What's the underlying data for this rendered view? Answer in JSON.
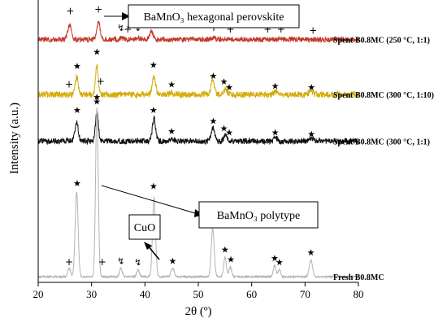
{
  "chart_data": {
    "type": "line",
    "xlabel": "2θ (º)",
    "ylabel": "Intensity (a.u.)",
    "xlim": [
      20,
      80
    ],
    "x_ticks": [
      20,
      30,
      40,
      50,
      60,
      70,
      80
    ],
    "series": [
      {
        "name": "Spent B0.8MC (250 °C, 1:1)",
        "color": "#c0392b",
        "baseline": 0.86,
        "noise": 0.018,
        "peaks": [
          {
            "x": 25.9,
            "h": 0.052,
            "w": 0.35
          },
          {
            "x": 31.3,
            "h": 0.062,
            "w": 0.3
          },
          {
            "x": 35.5,
            "h": 0.006,
            "w": 0.3
          },
          {
            "x": 38.6,
            "h": 0.005,
            "w": 0.3
          },
          {
            "x": 41.2,
            "h": 0.028,
            "w": 0.35
          },
          {
            "x": 52.8,
            "h": 0.008,
            "w": 0.3
          },
          {
            "x": 55.8,
            "h": 0.005,
            "w": 0.3
          },
          {
            "x": 65.5,
            "h": 0.004,
            "w": 0.3
          }
        ]
      },
      {
        "name": "Spent B0.8MC (300 °C, 1:10)",
        "color": "#d4ac0d",
        "baseline": 0.665,
        "noise": 0.022,
        "peaks": [
          {
            "x": 27.2,
            "h": 0.06,
            "w": 0.3
          },
          {
            "x": 31.0,
            "h": 0.1,
            "w": 0.28
          },
          {
            "x": 41.7,
            "h": 0.065,
            "w": 0.3
          },
          {
            "x": 45.0,
            "h": 0.008,
            "w": 0.3
          },
          {
            "x": 52.7,
            "h": 0.05,
            "w": 0.3
          },
          {
            "x": 55.1,
            "h": 0.02,
            "w": 0.3
          },
          {
            "x": 64.5,
            "h": 0.012,
            "w": 0.3
          },
          {
            "x": 71.2,
            "h": 0.012,
            "w": 0.35
          }
        ]
      },
      {
        "name": "Spent B0.8MC (300 °C, 1:1)",
        "color": "#111111",
        "baseline": 0.5,
        "noise": 0.02,
        "peaks": [
          {
            "x": 27.2,
            "h": 0.07,
            "w": 0.3
          },
          {
            "x": 31.0,
            "h": 0.1,
            "w": 0.28
          },
          {
            "x": 41.7,
            "h": 0.08,
            "w": 0.3
          },
          {
            "x": 45.0,
            "h": 0.01,
            "w": 0.3
          },
          {
            "x": 52.7,
            "h": 0.05,
            "w": 0.3
          },
          {
            "x": 55.1,
            "h": 0.025,
            "w": 0.3
          },
          {
            "x": 64.5,
            "h": 0.012,
            "w": 0.3
          },
          {
            "x": 71.2,
            "h": 0.012,
            "w": 0.35
          }
        ]
      },
      {
        "name": "Fresh B0.8MC",
        "color": "#b3b3b3",
        "baseline": 0.02,
        "noise": 0.006,
        "peaks": [
          {
            "x": 25.8,
            "h": 0.03,
            "w": 0.25
          },
          {
            "x": 27.2,
            "h": 0.3,
            "w": 0.28
          },
          {
            "x": 31.0,
            "h": 0.6,
            "w": 0.25
          },
          {
            "x": 35.5,
            "h": 0.03,
            "w": 0.25
          },
          {
            "x": 38.7,
            "h": 0.025,
            "w": 0.25
          },
          {
            "x": 41.7,
            "h": 0.28,
            "w": 0.28
          },
          {
            "x": 45.2,
            "h": 0.03,
            "w": 0.3
          },
          {
            "x": 52.7,
            "h": 0.17,
            "w": 0.28
          },
          {
            "x": 55.0,
            "h": 0.07,
            "w": 0.25
          },
          {
            "x": 56.0,
            "h": 0.035,
            "w": 0.25
          },
          {
            "x": 64.3,
            "h": 0.04,
            "w": 0.25
          },
          {
            "x": 65.2,
            "h": 0.025,
            "w": 0.25
          },
          {
            "x": 71.1,
            "h": 0.06,
            "w": 0.3
          }
        ]
      }
    ],
    "markers": [
      {
        "symbol": "+",
        "x": 26.0,
        "y": 0.95
      },
      {
        "symbol": "+",
        "x": 31.3,
        "y": 0.955
      },
      {
        "symbol": "↯",
        "x": 35.5,
        "y": 0.89
      },
      {
        "symbol": "+",
        "x": 36.8,
        "y": 0.885
      },
      {
        "symbol": "↯",
        "x": 38.6,
        "y": 0.89
      },
      {
        "symbol": "+",
        "x": 41.2,
        "y": 0.925
      },
      {
        "symbol": "+",
        "x": 42.0,
        "y": 0.9
      },
      {
        "symbol": "+",
        "x": 52.9,
        "y": 0.89
      },
      {
        "symbol": "+",
        "x": 56.0,
        "y": 0.885
      },
      {
        "symbol": "+",
        "x": 63.0,
        "y": 0.885
      },
      {
        "symbol": "+",
        "x": 65.5,
        "y": 0.885
      },
      {
        "symbol": "+",
        "x": 71.5,
        "y": 0.88
      },
      {
        "symbol": "★",
        "x": 27.3,
        "y": 0.755
      },
      {
        "symbol": "★",
        "x": 31.0,
        "y": 0.805
      },
      {
        "symbol": "+",
        "x": 25.8,
        "y": 0.69
      },
      {
        "symbol": "+",
        "x": 31.7,
        "y": 0.7
      },
      {
        "symbol": "★",
        "x": 41.6,
        "y": 0.76
      },
      {
        "symbol": "★",
        "x": 45.0,
        "y": 0.69
      },
      {
        "symbol": "★",
        "x": 52.8,
        "y": 0.72
      },
      {
        "symbol": "★",
        "x": 54.8,
        "y": 0.7
      },
      {
        "symbol": "★",
        "x": 55.8,
        "y": 0.68
      },
      {
        "symbol": "★",
        "x": 64.4,
        "y": 0.685
      },
      {
        "symbol": "★",
        "x": 71.2,
        "y": 0.68
      },
      {
        "symbol": "★",
        "x": 27.3,
        "y": 0.6
      },
      {
        "symbol": "★",
        "x": 31.0,
        "y": 0.63
      },
      {
        "symbol": "★",
        "x": 41.6,
        "y": 0.6
      },
      {
        "symbol": "★",
        "x": 45.0,
        "y": 0.525
      },
      {
        "symbol": "★",
        "x": 52.8,
        "y": 0.56
      },
      {
        "symbol": "★",
        "x": 54.8,
        "y": 0.535
      },
      {
        "symbol": "★",
        "x": 55.8,
        "y": 0.52
      },
      {
        "symbol": "★",
        "x": 64.4,
        "y": 0.52
      },
      {
        "symbol": "★",
        "x": 71.2,
        "y": 0.515
      },
      {
        "symbol": "★",
        "x": 27.3,
        "y": 0.34
      },
      {
        "symbol": "★",
        "x": 31.0,
        "y": 0.645
      },
      {
        "symbol": "★",
        "x": 41.6,
        "y": 0.33
      },
      {
        "symbol": "★",
        "x": 45.2,
        "y": 0.065
      },
      {
        "symbol": "★",
        "x": 52.7,
        "y": 0.205
      },
      {
        "symbol": "★",
        "x": 55.0,
        "y": 0.105
      },
      {
        "symbol": "★",
        "x": 56.1,
        "y": 0.07
      },
      {
        "symbol": "★",
        "x": 64.3,
        "y": 0.075
      },
      {
        "symbol": "★",
        "x": 65.2,
        "y": 0.06
      },
      {
        "symbol": "★",
        "x": 71.1,
        "y": 0.095
      },
      {
        "symbol": "+",
        "x": 25.8,
        "y": 0.06
      },
      {
        "symbol": "+",
        "x": 32.0,
        "y": 0.06
      },
      {
        "symbol": "↯",
        "x": 35.5,
        "y": 0.065
      },
      {
        "symbol": "↯",
        "x": 38.7,
        "y": 0.06
      }
    ],
    "annotations": {
      "hexagonal": "BaMnO₃ hexagonal perovskite",
      "polytype": "BaMnO₃ polytype",
      "cuo": "CuO"
    }
  }
}
